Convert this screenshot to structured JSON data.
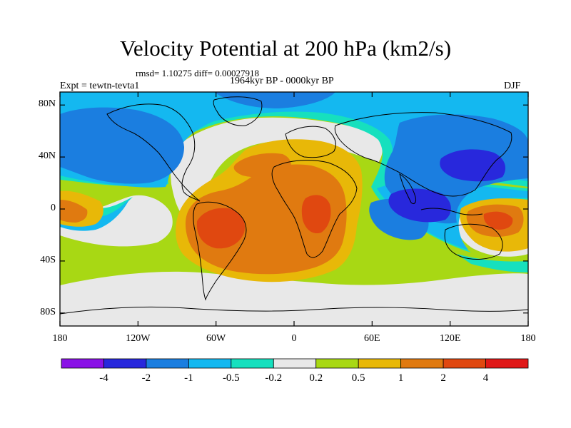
{
  "figure": {
    "title": "Velocity Potential at 200 hPa (km2/s)",
    "stats_line": "rmsd= 1.10275 diff= 0.00027918",
    "subtitle": "1964kyr BP - 0000kyr BP",
    "left_label": "Expt = tewtn-tevta1",
    "right_label": "DJF"
  },
  "chart_data": {
    "type": "heatmap",
    "variable": "Velocity Potential at 200 hPa",
    "units": "km2/s",
    "projection": "cylindrical equidistant",
    "x_range": [
      -180,
      180
    ],
    "y_range": [
      -90,
      90
    ],
    "x_ticks": [
      {
        "value": -180,
        "label": "180"
      },
      {
        "value": -120,
        "label": "120W"
      },
      {
        "value": -60,
        "label": "60W"
      },
      {
        "value": 0,
        "label": "0"
      },
      {
        "value": 60,
        "label": "60E"
      },
      {
        "value": 120,
        "label": "120E"
      },
      {
        "value": 180,
        "label": "180"
      }
    ],
    "y_ticks": [
      {
        "value": 80,
        "label": "80N"
      },
      {
        "value": 40,
        "label": "40N"
      },
      {
        "value": 0,
        "label": "0"
      },
      {
        "value": -40,
        "label": "40S"
      },
      {
        "value": -80,
        "label": "80S"
      }
    ],
    "contour_levels": [
      -4,
      -2,
      -1,
      -0.5,
      -0.2,
      0.2,
      0.5,
      1,
      2,
      4
    ],
    "colorbar": {
      "labels": [
        "-4",
        "-2",
        "-1",
        "-0.5",
        "-0.2",
        "0.2",
        "0.5",
        "1",
        "2",
        "4"
      ],
      "colors": [
        "#8a12e6",
        "#2828dc",
        "#1b7ee0",
        "#14b8f0",
        "#16e0be",
        "#e8e8e8",
        "#a8d814",
        "#e8b808",
        "#e07a10",
        "#e04810",
        "#e01818"
      ]
    },
    "field_features": [
      {
        "label": "positive maximum over South America",
        "lon": -55,
        "lat": -12,
        "value": 2.5
      },
      {
        "label": "positive maximum over Africa",
        "lon": 25,
        "lat": -8,
        "value": 2.3
      },
      {
        "label": "positive centre over South Atlantic",
        "lon": -10,
        "lat": -35,
        "value": 1.5
      },
      {
        "label": "positive centre over North Africa",
        "lon": -10,
        "lat": 35,
        "value": 1.6
      },
      {
        "label": "positive centre over West Pacific",
        "lon": 160,
        "lat": -10,
        "value": 1.8
      },
      {
        "label": "positive centre over East Pacific",
        "lon": -175,
        "lat": -2,
        "value": 1.2
      },
      {
        "label": "negative minimum over Maritime Continent",
        "lon": 100,
        "lat": 5,
        "value": -2.4
      },
      {
        "label": "negative minimum over East Asia",
        "lon": 138,
        "lat": 35,
        "value": -2.3
      },
      {
        "label": "negative centre over North Pacific / America",
        "lon": -125,
        "lat": 45,
        "value": -1.3
      },
      {
        "label": "negative centre over Indian Ocean",
        "lon": 80,
        "lat": 0,
        "value": -1.1
      },
      {
        "label": "negative centre over Arctic",
        "lon": -60,
        "lat": 82,
        "value": -0.8
      }
    ]
  }
}
